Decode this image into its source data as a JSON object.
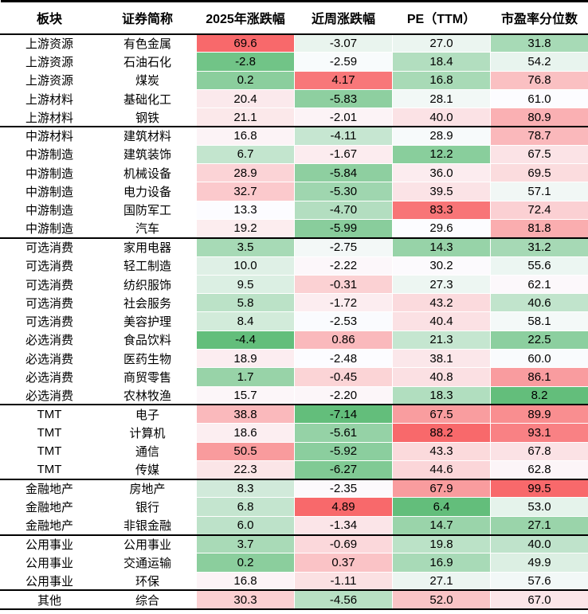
{
  "chart_data": {
    "type": "table",
    "columns": [
      "板块",
      "证券简称",
      "2025年涨跌幅",
      "近周涨跌幅",
      "PE（TTM）",
      "市盈率分位数"
    ],
    "rows": [
      {
        "sector": "上游资源",
        "name": "有色金属",
        "values": [
          "69.6",
          "-3.07",
          "27.0",
          "31.8"
        ]
      },
      {
        "sector": "上游资源",
        "name": "石油石化",
        "values": [
          "-2.8",
          "-2.59",
          "18.4",
          "54.2"
        ]
      },
      {
        "sector": "上游资源",
        "name": "煤炭",
        "values": [
          "0.2",
          "4.17",
          "16.8",
          "76.8"
        ]
      },
      {
        "sector": "上游材料",
        "name": "基础化工",
        "values": [
          "20.4",
          "-5.83",
          "28.1",
          "61.0"
        ]
      },
      {
        "sector": "上游材料",
        "name": "钢铁",
        "values": [
          "21.1",
          "-2.01",
          "40.0",
          "80.9"
        ]
      },
      {
        "sector": "中游材料",
        "name": "建筑材料",
        "values": [
          "16.8",
          "-4.11",
          "28.9",
          "78.7"
        ]
      },
      {
        "sector": "中游制造",
        "name": "建筑装饰",
        "values": [
          "6.7",
          "-1.67",
          "12.2",
          "67.5"
        ]
      },
      {
        "sector": "中游制造",
        "name": "机械设备",
        "values": [
          "28.9",
          "-5.84",
          "36.0",
          "69.5"
        ]
      },
      {
        "sector": "中游制造",
        "name": "电力设备",
        "values": [
          "32.7",
          "-5.30",
          "39.5",
          "57.1"
        ]
      },
      {
        "sector": "中游制造",
        "name": "国防军工",
        "values": [
          "13.3",
          "-4.70",
          "83.3",
          "72.4"
        ]
      },
      {
        "sector": "中游制造",
        "name": "汽车",
        "values": [
          "19.2",
          "-5.99",
          "29.6",
          "81.8"
        ]
      },
      {
        "sector": "可选消费",
        "name": "家用电器",
        "values": [
          "3.5",
          "-2.75",
          "14.3",
          "31.2"
        ]
      },
      {
        "sector": "可选消费",
        "name": "轻工制造",
        "values": [
          "10.0",
          "-2.22",
          "30.2",
          "55.6"
        ]
      },
      {
        "sector": "可选消费",
        "name": "纺织服饰",
        "values": [
          "9.5",
          "-0.31",
          "27.3",
          "62.1"
        ]
      },
      {
        "sector": "可选消费",
        "name": "社会服务",
        "values": [
          "5.8",
          "-1.72",
          "43.2",
          "40.6"
        ]
      },
      {
        "sector": "可选消费",
        "name": "美容护理",
        "values": [
          "8.4",
          "-2.53",
          "40.4",
          "58.1"
        ]
      },
      {
        "sector": "必选消费",
        "name": "食品饮料",
        "values": [
          "-4.4",
          "0.86",
          "21.3",
          "22.5"
        ]
      },
      {
        "sector": "必选消费",
        "name": "医药生物",
        "values": [
          "18.9",
          "-2.48",
          "38.1",
          "60.0"
        ]
      },
      {
        "sector": "必选消费",
        "name": "商贸零售",
        "values": [
          "1.7",
          "-0.45",
          "40.8",
          "86.1"
        ]
      },
      {
        "sector": "必选消费",
        "name": "农林牧渔",
        "values": [
          "15.7",
          "-2.20",
          "18.3",
          "8.2"
        ]
      },
      {
        "sector": "TMT",
        "name": "电子",
        "values": [
          "38.8",
          "-7.14",
          "67.5",
          "89.9"
        ]
      },
      {
        "sector": "TMT",
        "name": "计算机",
        "values": [
          "18.6",
          "-5.61",
          "88.2",
          "93.1"
        ]
      },
      {
        "sector": "TMT",
        "name": "通信",
        "values": [
          "50.5",
          "-5.92",
          "43.3",
          "67.8"
        ]
      },
      {
        "sector": "TMT",
        "name": "传媒",
        "values": [
          "22.3",
          "-6.27",
          "44.6",
          "62.8"
        ]
      },
      {
        "sector": "金融地产",
        "name": "房地产",
        "values": [
          "8.3",
          "-2.35",
          "67.9",
          "99.5"
        ]
      },
      {
        "sector": "金融地产",
        "name": "银行",
        "values": [
          "6.8",
          "4.89",
          "6.4",
          "53.0"
        ]
      },
      {
        "sector": "金融地产",
        "name": "非银金融",
        "values": [
          "6.0",
          "-1.34",
          "14.7",
          "27.1"
        ]
      },
      {
        "sector": "公用事业",
        "name": "公用事业",
        "values": [
          "3.7",
          "-0.69",
          "19.8",
          "40.0"
        ]
      },
      {
        "sector": "公用事业",
        "name": "交通运输",
        "values": [
          "0.2",
          "0.37",
          "16.9",
          "49.9"
        ]
      },
      {
        "sector": "公用事业",
        "name": "环保",
        "values": [
          "16.8",
          "-1.11",
          "27.1",
          "57.6"
        ]
      },
      {
        "sector": "其他",
        "name": "综合",
        "values": [
          "30.3",
          "-4.56",
          "52.0",
          "67.0"
        ]
      }
    ],
    "group_breaks_after": [
      4,
      10,
      19,
      23,
      26,
      29
    ],
    "heatmap": {
      "min_color": "#63BE7B",
      "mid_color": "#FCFCFF",
      "max_color": "#F8696B",
      "midpoint": "50th percentile of each numeric column",
      "applies_to": [
        "2025年涨跌幅",
        "近周涨跌幅",
        "PE（TTM）",
        "市盈率分位数"
      ]
    },
    "border_color": "#000000",
    "legend_position": "none",
    "grid": "off"
  }
}
